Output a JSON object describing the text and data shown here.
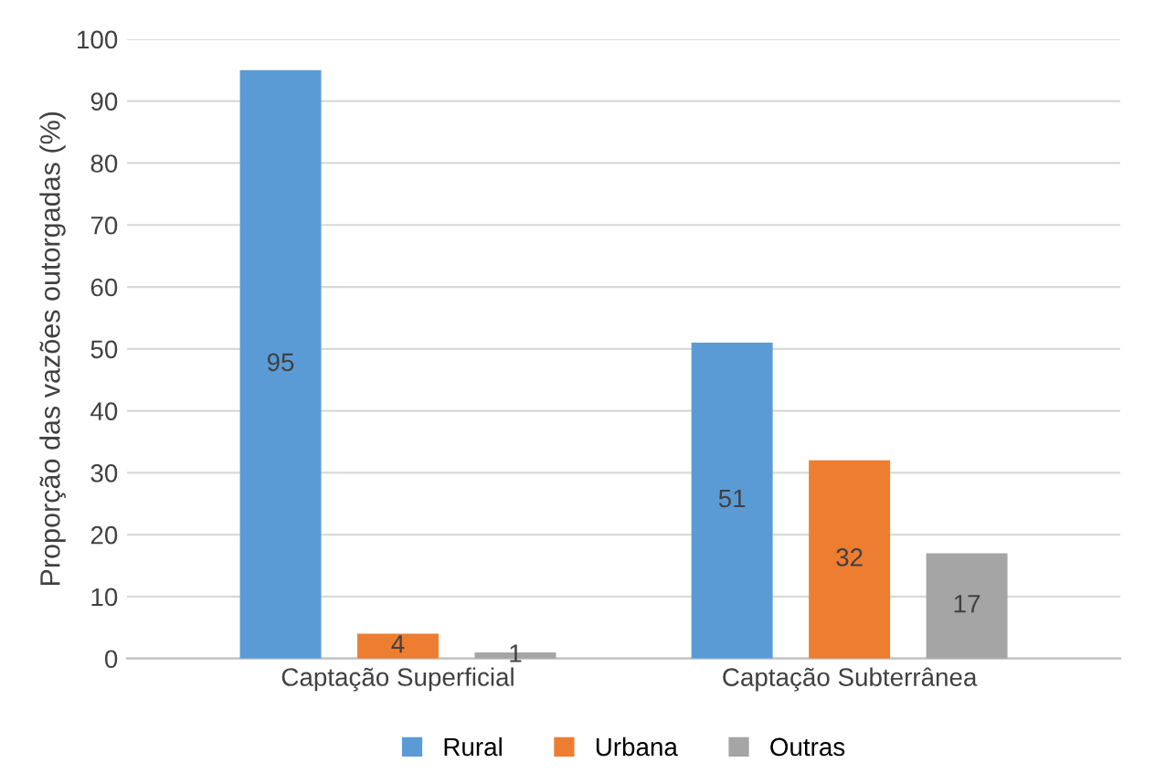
{
  "chart_data": {
    "type": "bar",
    "ylabel": "Proporção das vazões outorgadas (%)",
    "categories": [
      "Captação Superficial",
      "Captação Subterrânea"
    ],
    "series": [
      {
        "name": "Rural",
        "color": "#5b9bd5",
        "values": [
          95,
          51
        ]
      },
      {
        "name": "Urbana",
        "color": "#ed7d31",
        "values": [
          4,
          32
        ]
      },
      {
        "name": "Outras",
        "color": "#a5a5a5",
        "values": [
          1,
          17
        ]
      }
    ],
    "ylim": [
      0,
      100
    ],
    "yticks": [
      0,
      10,
      20,
      30,
      40,
      50,
      60,
      70,
      80,
      90,
      100
    ],
    "grid": "y",
    "legend": "bottom",
    "data_labels": true
  }
}
